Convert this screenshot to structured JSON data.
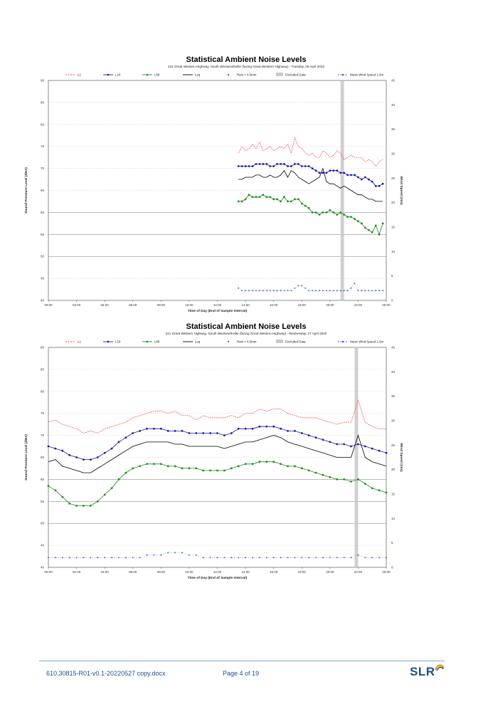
{
  "footer": {
    "document_ref": "610.30815-R01-v0.1-20220527 copy.docx",
    "page_label": "Page 4 of 19",
    "logo_text": "SLR"
  },
  "colors": {
    "L1": "#ff3b3b",
    "L10": "#1a1aa8",
    "L90": "#1d8c1d",
    "Leq": "#000000",
    "rain": "#ff2a6a",
    "excluded": "#c8c8c8",
    "wind": "#3a6fd8",
    "footer": "#1f4e8c"
  },
  "chart_data": [
    {
      "type": "line",
      "title": "Statistical Ambient Noise Levels",
      "subtitle": "241 Great Western Highway, South Wentworthville (facing Great Western Highway) - Tuesday, 26 April 2022",
      "xlabel": "Time of Day (End of Sample Interval)",
      "ylabel": "Sound Pressure Level (dBA)",
      "y2label": "Wind Speed (m/s)",
      "ylim": [
        40,
        90
      ],
      "y2lim": [
        0,
        45
      ],
      "yticks": [
        "40",
        "45",
        "50",
        "55",
        "60",
        "65",
        "70",
        "75",
        "80",
        "85",
        "90"
      ],
      "y2ticks": [
        "0",
        "5",
        "10",
        "15",
        "20",
        "25",
        "30",
        "35",
        "40",
        "45"
      ],
      "xticks": [
        "00:00",
        "02:00",
        "04:00",
        "06:00",
        "08:00",
        "10:00",
        "12:00",
        "14:00",
        "16:00",
        "18:00",
        "20:00",
        "22:00",
        "00:00"
      ],
      "legend": [
        "L1",
        "L10",
        "L90",
        "Leq",
        "Rain > 0.5mm",
        "Excluded Data",
        "Mean Wind Speed 1.5m"
      ],
      "legend_position": "top",
      "grid": "horizontal-dotted",
      "excluded_periods": [
        [
          20.75,
          21.0
        ]
      ],
      "x_hours": [
        13.5,
        13.75,
        14.0,
        14.25,
        14.5,
        14.75,
        15.0,
        15.25,
        15.5,
        15.75,
        16.0,
        16.25,
        16.5,
        16.75,
        17.0,
        17.25,
        17.5,
        17.75,
        18.0,
        18.25,
        18.5,
        18.75,
        19.0,
        19.25,
        19.5,
        19.75,
        20.0,
        20.25,
        20.5,
        20.75,
        21.0,
        21.25,
        21.5,
        21.75,
        22.0,
        22.25,
        22.5,
        22.75,
        23.0,
        23.25,
        23.5,
        23.75
      ],
      "series": [
        {
          "name": "L1",
          "style": "dashed",
          "values": [
            73.5,
            75,
            74,
            74.5,
            75.5,
            74.5,
            76,
            74,
            74.5,
            75,
            74,
            74.5,
            75,
            74.5,
            75.5,
            73.5,
            77,
            75,
            74.5,
            73.5,
            73,
            73.5,
            72.5,
            72.5,
            74,
            73.5,
            72.5,
            73,
            74,
            73.5,
            72,
            72.5,
            73,
            72.5,
            72.5,
            72.5,
            71.5,
            72,
            71.5,
            70.5,
            71.5,
            72
          ]
        },
        {
          "name": "L10",
          "style": "marker",
          "values": [
            70.5,
            70.5,
            70.5,
            70.5,
            70.5,
            71,
            71,
            71,
            71,
            70.5,
            70.5,
            71,
            71,
            71,
            70.5,
            70.5,
            71,
            71,
            70.5,
            70.5,
            70.5,
            70,
            69.5,
            69,
            69,
            69,
            69.5,
            69.5,
            69.5,
            69,
            69,
            68.5,
            68.5,
            68.5,
            68,
            67.5,
            68,
            67.5,
            67,
            66,
            66,
            66.5
          ]
        },
        {
          "name": "Leq",
          "style": "solid",
          "values": [
            67.5,
            67.5,
            68,
            68,
            68,
            68.5,
            68.5,
            68,
            68,
            68.5,
            68,
            68,
            68.5,
            69.5,
            68,
            69.5,
            69,
            68,
            67.5,
            67,
            66.5,
            67,
            67.5,
            68,
            70,
            67,
            66.5,
            66.5,
            66,
            65.5,
            66,
            65.5,
            65,
            64.5,
            64,
            64,
            63.5,
            63,
            63,
            62.5,
            62.5,
            62.5
          ]
        },
        {
          "name": "L90",
          "style": "marker",
          "values": [
            62.5,
            62.5,
            63,
            64,
            63.5,
            63.5,
            63.5,
            64,
            63.5,
            63.5,
            63,
            63,
            62.5,
            63.5,
            62.5,
            62.5,
            63,
            63,
            62,
            61.5,
            61,
            60,
            60,
            59.5,
            60,
            60,
            60.5,
            60,
            59.5,
            60,
            59.5,
            59,
            59,
            58.5,
            58,
            57.5,
            56.5,
            56,
            55.5,
            57,
            55,
            57.5
          ]
        },
        {
          "name": "Mean Wind Speed 1.5m",
          "axis": "right",
          "style": "marker-dashed",
          "values": [
            2.5,
            2,
            2,
            2,
            2,
            2,
            2,
            2,
            2,
            2,
            2,
            2,
            2,
            2,
            2,
            2,
            2.5,
            3,
            3,
            2.5,
            2,
            2,
            2,
            2,
            2,
            2,
            2,
            2,
            2,
            2,
            2,
            2,
            2.5,
            3.5,
            2,
            2,
            2,
            2,
            2,
            2,
            2,
            2
          ]
        }
      ]
    },
    {
      "type": "line",
      "title": "Statistical Ambient Noise Levels",
      "subtitle": "241 Great Western Highway, South Wentworthville (facing Great Western Highway) - Wednesday, 27 April 2022",
      "xlabel": "Time of Day (End of Sample Interval)",
      "ylabel": "Sound Pressure Level (dBA)",
      "y2label": "Wind Speed (m/s)",
      "ylim": [
        40,
        90
      ],
      "y2lim": [
        0,
        45
      ],
      "yticks": [
        "40",
        "45",
        "50",
        "55",
        "60",
        "65",
        "70",
        "75",
        "80",
        "85",
        "90"
      ],
      "y2ticks": [
        "0",
        "5",
        "10",
        "15",
        "20",
        "25",
        "30",
        "35",
        "40",
        "45"
      ],
      "xticks": [
        "00:00",
        "02:00",
        "04:00",
        "06:00",
        "08:00",
        "10:00",
        "12:00",
        "14:00",
        "16:00",
        "18:00",
        "20:00",
        "22:00",
        "00:00"
      ],
      "legend": [
        "L1",
        "L10",
        "L90",
        "Leq",
        "Rain > 0.5mm",
        "Excluded Data",
        "Mean Wind Speed 1.5m"
      ],
      "legend_position": "top",
      "grid": "horizontal-dotted",
      "excluded_periods": [
        [
          21.75,
          22.0
        ]
      ],
      "x_hours": [
        0,
        0.5,
        1,
        1.5,
        2,
        2.5,
        3,
        3.5,
        4,
        4.5,
        5,
        5.5,
        6,
        6.5,
        7,
        7.5,
        8,
        8.5,
        9,
        9.5,
        10,
        10.5,
        11,
        11.5,
        12,
        12.5,
        13,
        13.5,
        14,
        14.5,
        15,
        15.5,
        16,
        16.5,
        17,
        17.5,
        18,
        18.5,
        19,
        19.5,
        20,
        20.5,
        21,
        21.5,
        22,
        22.5,
        23,
        23.5,
        24
      ],
      "series": [
        {
          "name": "L1",
          "style": "dashed",
          "values": [
            73,
            73.5,
            72.5,
            72,
            71.5,
            70.5,
            71,
            70.5,
            71.5,
            72,
            72.5,
            73,
            74,
            74.5,
            75,
            75.5,
            75.5,
            75,
            75.5,
            74.5,
            74.5,
            73.5,
            74.5,
            74,
            74,
            74,
            74.5,
            74,
            75,
            75,
            76,
            75.5,
            76,
            76,
            75,
            74.5,
            74,
            74,
            74,
            73.5,
            73,
            72.5,
            73,
            73,
            78,
            73,
            72,
            71.5,
            71.5
          ]
        },
        {
          "name": "L10",
          "style": "marker",
          "values": [
            67.5,
            67,
            66.5,
            65.5,
            65,
            64.5,
            64.5,
            65,
            66,
            67,
            68.5,
            69.5,
            70.5,
            71,
            71.5,
            71.5,
            71.5,
            71,
            71,
            71,
            70.5,
            70.5,
            70.5,
            70.5,
            70.5,
            70,
            70.5,
            71.5,
            71.5,
            71.5,
            72,
            72,
            72,
            71.5,
            71,
            71,
            70.5,
            70,
            69.5,
            69,
            68.5,
            68,
            68,
            67.5,
            68,
            67.5,
            67,
            66.5,
            66
          ]
        },
        {
          "name": "Leq",
          "style": "solid",
          "values": [
            64,
            64.5,
            63,
            62.5,
            62,
            61.5,
            61.5,
            62.5,
            63.5,
            64.5,
            65.5,
            66.5,
            67.5,
            68,
            68.5,
            68.5,
            68.5,
            68.5,
            68,
            68,
            67.5,
            67.5,
            67.5,
            67.5,
            67.5,
            67,
            67.5,
            68,
            68.5,
            68.5,
            69,
            69.5,
            70,
            69.5,
            68.5,
            68,
            67.5,
            67,
            66.5,
            66,
            65.5,
            65,
            65,
            65,
            70,
            65,
            64,
            63.5,
            63
          ]
        },
        {
          "name": "L90",
          "style": "marker",
          "values": [
            58.5,
            57.5,
            56,
            54.5,
            54,
            54,
            54,
            55,
            56.5,
            58,
            60,
            61.5,
            62.5,
            63,
            63.5,
            63.5,
            63.5,
            63,
            63,
            62.5,
            62.5,
            62.5,
            62,
            62,
            62,
            62,
            62.5,
            63,
            63.5,
            63.5,
            64,
            64,
            64,
            63.5,
            63,
            63,
            62.5,
            62,
            61.5,
            61,
            60.5,
            60,
            60,
            59.5,
            60,
            59,
            58,
            57.5,
            57
          ]
        },
        {
          "name": "Mean Wind Speed 1.5m",
          "axis": "right",
          "style": "marker-dashed",
          "values": [
            2,
            2,
            2,
            2,
            2,
            2,
            2,
            2,
            2,
            2,
            2,
            2,
            2,
            2,
            2.5,
            2.5,
            2.5,
            3,
            3,
            3,
            2.5,
            2.5,
            2,
            2,
            2,
            2,
            2,
            2,
            2,
            2,
            2,
            2,
            2,
            2,
            2,
            2,
            2,
            2,
            2,
            2,
            2,
            2,
            2,
            2,
            2.5,
            2,
            2,
            2,
            2
          ]
        }
      ]
    }
  ]
}
